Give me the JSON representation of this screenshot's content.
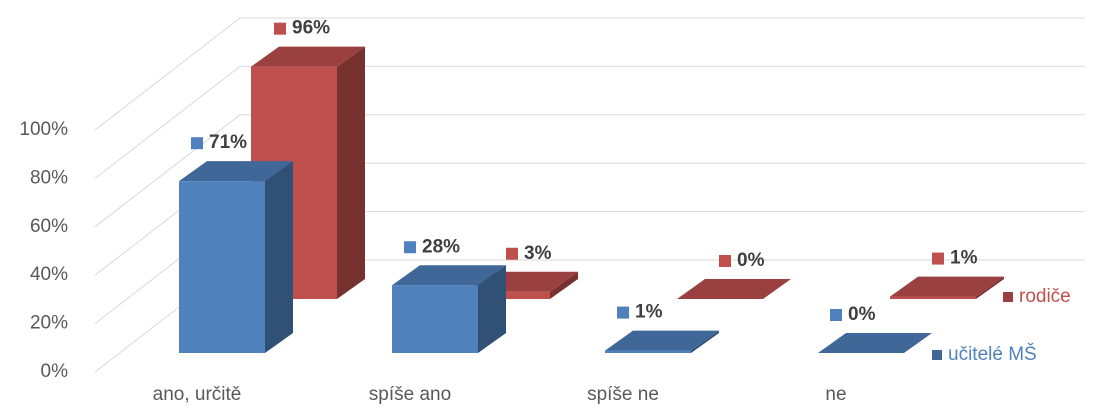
{
  "chart_data": {
    "type": "bar3d",
    "categories": [
      "ano, určitě",
      "spíše ano",
      "spíše ne",
      "ne"
    ],
    "series": [
      {
        "name": "učitelé MŠ",
        "color": "#4f81bd",
        "values": [
          71,
          28,
          1,
          0
        ],
        "value_labels": [
          "71%",
          "28%",
          "1%",
          "0%"
        ]
      },
      {
        "name": "rodiče",
        "color": "#c0504d",
        "values": [
          96,
          3,
          0,
          1
        ],
        "value_labels": [
          "96%",
          "3%",
          "0%",
          "1%"
        ]
      }
    ],
    "ylim": [
      0,
      100
    ],
    "yticks": [
      {
        "value": 0,
        "label": "0%"
      },
      {
        "value": 20,
        "label": "20%"
      },
      {
        "value": 40,
        "label": "40%"
      },
      {
        "value": 60,
        "label": "60%"
      },
      {
        "value": 80,
        "label": "80%"
      },
      {
        "value": 100,
        "label": "100%"
      }
    ],
    "grid": true
  }
}
